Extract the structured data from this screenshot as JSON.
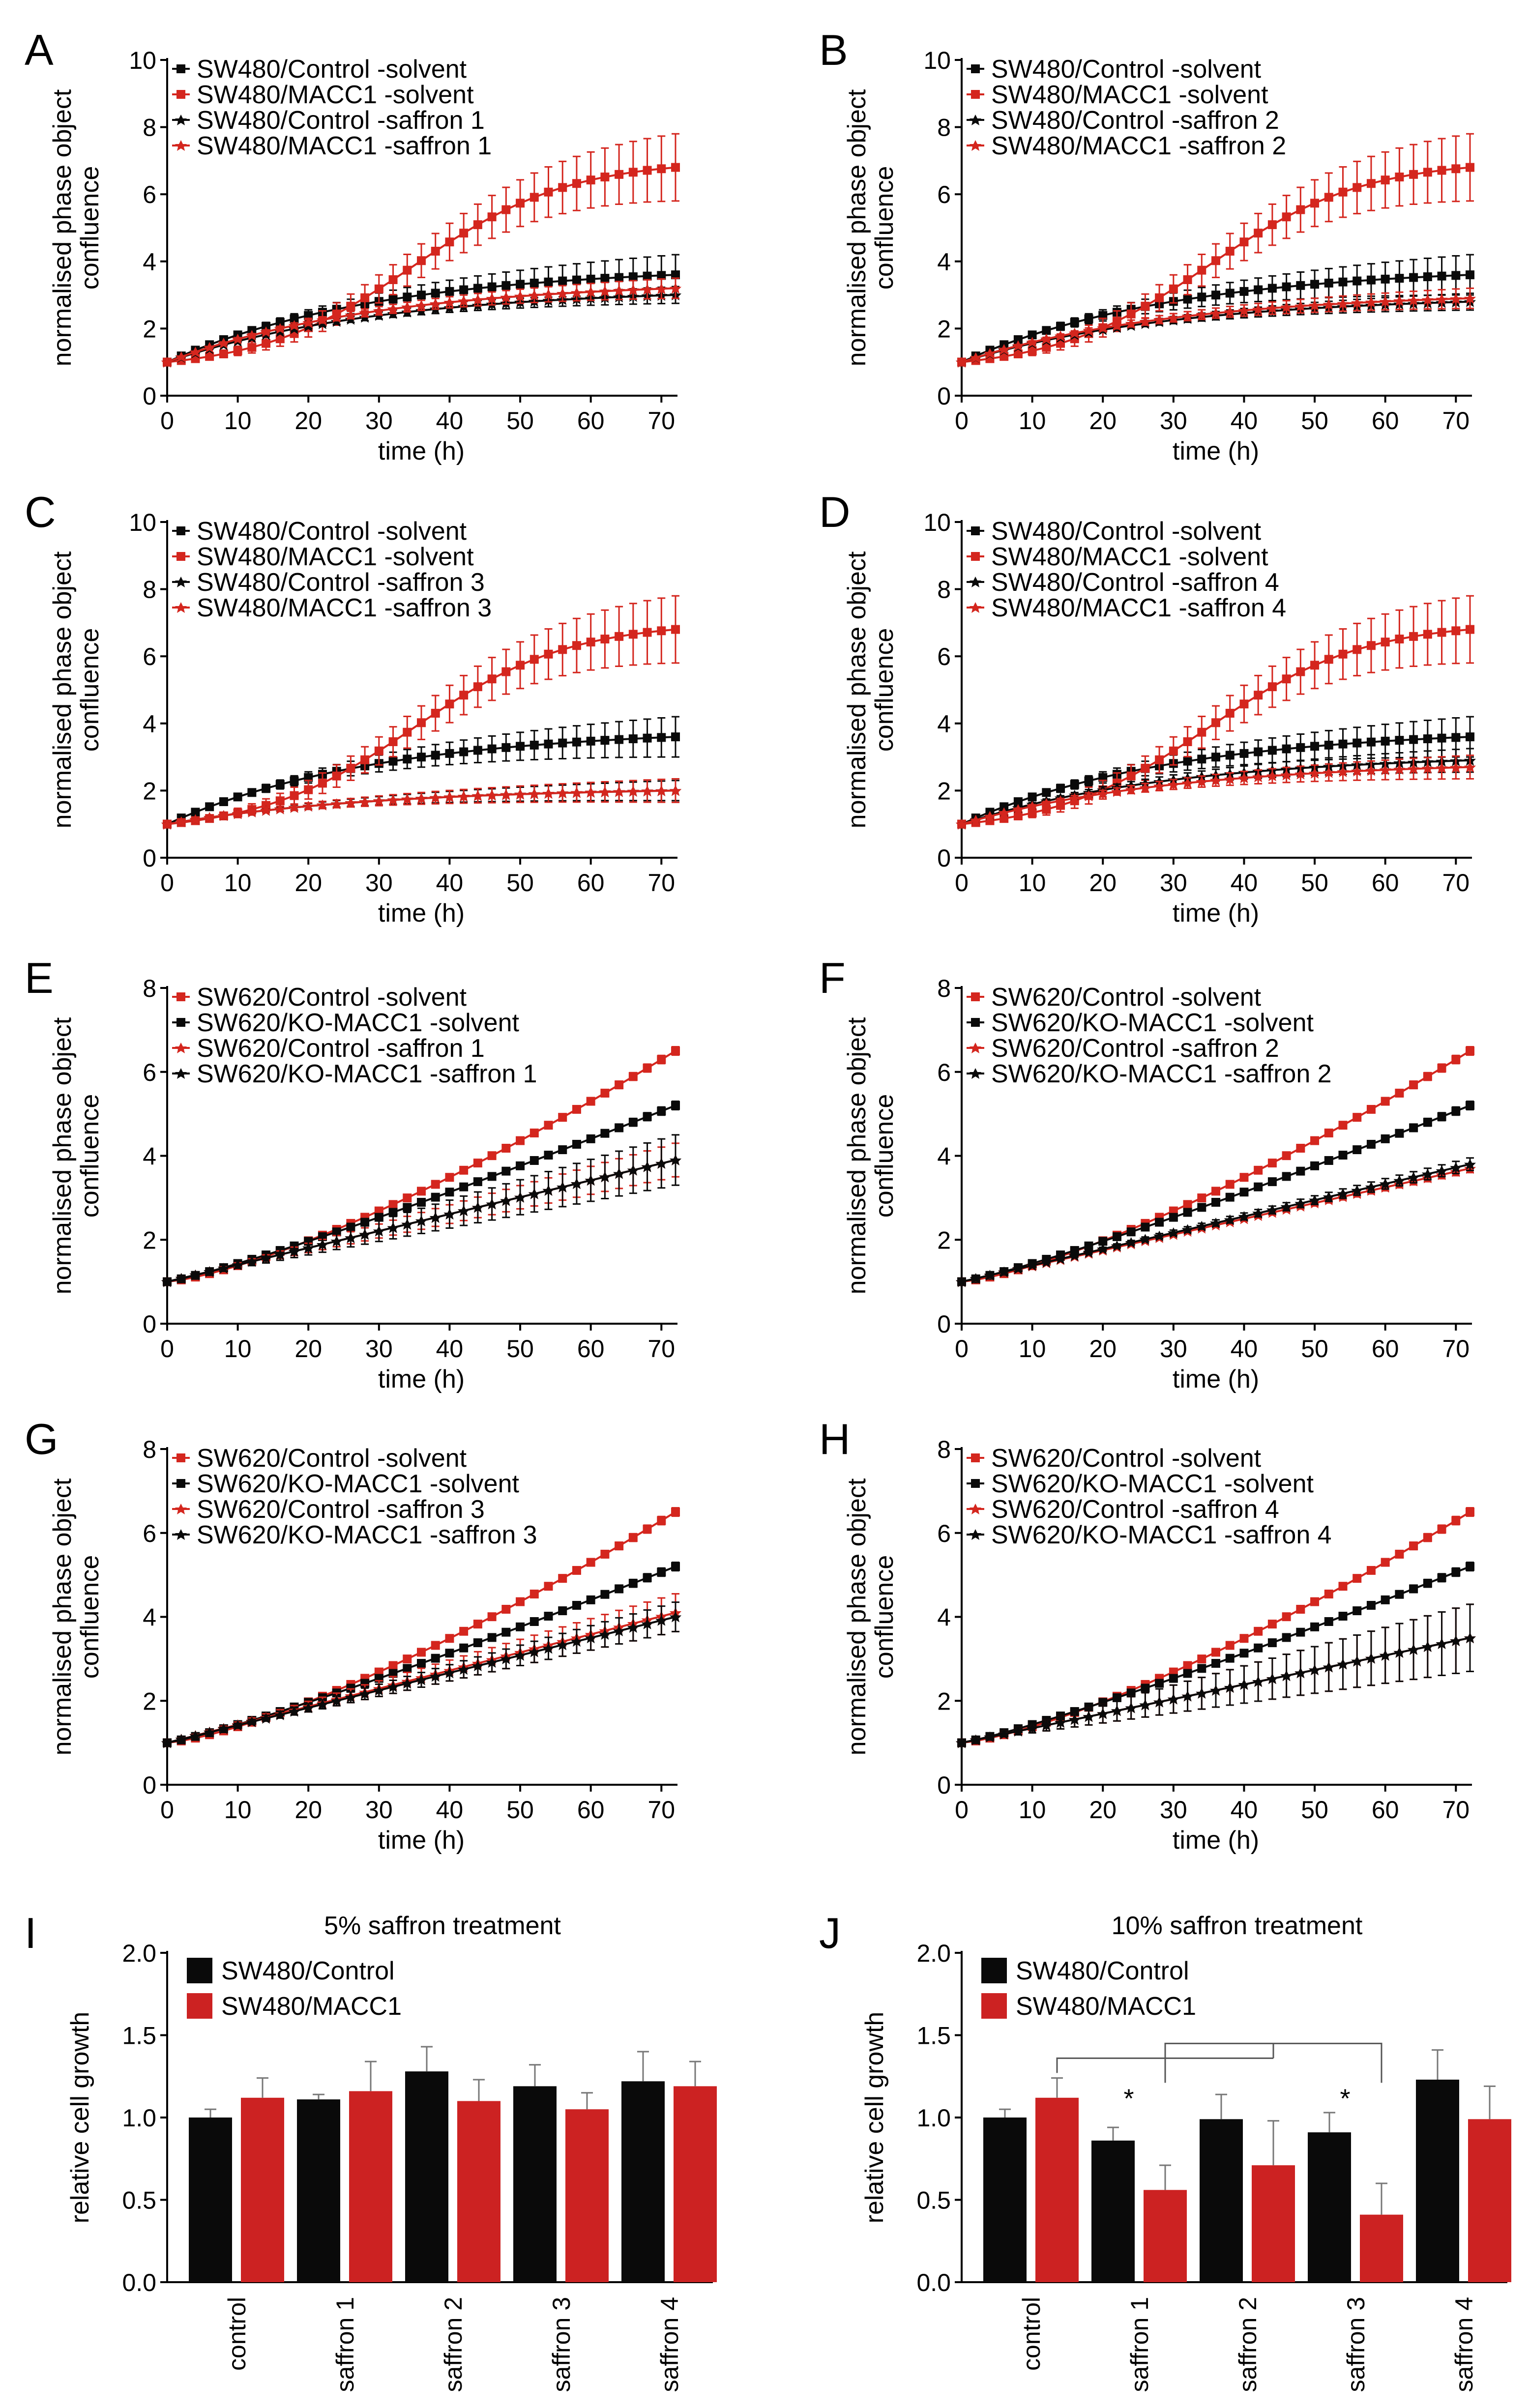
{
  "colors": {
    "black": "#0a0a0a",
    "red": "#d4261e",
    "red_bar": "#cc2222"
  },
  "chart_data": [
    {
      "panel": "A",
      "type": "line",
      "xlabel": "time (h)",
      "ylabel": [
        "normalised phase object",
        "confluence"
      ],
      "xlim": [
        0,
        72
      ],
      "ylim": [
        0,
        10
      ],
      "xticks": [
        0,
        10,
        20,
        30,
        40,
        50,
        60,
        70
      ],
      "yticks": [
        0,
        2,
        4,
        6,
        8,
        10
      ],
      "series": [
        {
          "name": "SW480/Control -solvent",
          "color": "black",
          "marker": "square",
          "final": 3.6,
          "err": 0.6,
          "shape": "sat"
        },
        {
          "name": "SW480/MACC1 -solvent",
          "color": "red",
          "marker": "square",
          "final": 6.8,
          "err": 1.0,
          "shape": "sig"
        },
        {
          "name": "SW480/Control -saffron 1",
          "color": "black",
          "marker": "star",
          "final": 3.0,
          "err": 0.25,
          "shape": "sat"
        },
        {
          "name": "SW480/MACC1 -saffron 1",
          "color": "red",
          "marker": "star",
          "final": 3.2,
          "err": 0.3,
          "shape": "sat"
        }
      ]
    },
    {
      "panel": "B",
      "type": "line",
      "xlabel": "time (h)",
      "ylabel": [
        "normalised phase object",
        "confluence"
      ],
      "xlim": [
        0,
        72
      ],
      "ylim": [
        0,
        10
      ],
      "xticks": [
        0,
        10,
        20,
        30,
        40,
        50,
        60,
        70
      ],
      "yticks": [
        0,
        2,
        4,
        6,
        8,
        10
      ],
      "series": [
        {
          "name": "SW480/Control -solvent",
          "color": "black",
          "marker": "square",
          "final": 3.6,
          "err": 0.6,
          "shape": "sat"
        },
        {
          "name": "SW480/MACC1 -solvent",
          "color": "red",
          "marker": "square",
          "final": 6.8,
          "err": 1.0,
          "shape": "sig"
        },
        {
          "name": "SW480/Control -saffron 2",
          "color": "black",
          "marker": "star",
          "final": 2.8,
          "err": 0.25,
          "shape": "sat"
        },
        {
          "name": "SW480/MACC1 -saffron 2",
          "color": "red",
          "marker": "star",
          "final": 2.9,
          "err": 0.3,
          "shape": "sat"
        }
      ]
    },
    {
      "panel": "C",
      "type": "line",
      "xlabel": "time (h)",
      "ylabel": [
        "normalised phase object",
        "confluence"
      ],
      "xlim": [
        0,
        72
      ],
      "ylim": [
        0,
        10
      ],
      "xticks": [
        0,
        10,
        20,
        30,
        40,
        50,
        60,
        70
      ],
      "yticks": [
        0,
        2,
        4,
        6,
        8,
        10
      ],
      "series": [
        {
          "name": "SW480/Control -solvent",
          "color": "black",
          "marker": "square",
          "final": 3.6,
          "err": 0.6,
          "shape": "sat"
        },
        {
          "name": "SW480/MACC1 -solvent",
          "color": "red",
          "marker": "square",
          "final": 6.8,
          "err": 1.0,
          "shape": "sig"
        },
        {
          "name": "SW480/Control -saffron 3",
          "color": "black",
          "marker": "star",
          "final": 2.0,
          "err": 0.3,
          "shape": "sat"
        },
        {
          "name": "SW480/MACC1 -saffron 3",
          "color": "red",
          "marker": "star",
          "final": 2.0,
          "err": 0.35,
          "shape": "sat"
        }
      ]
    },
    {
      "panel": "D",
      "type": "line",
      "xlabel": "time (h)",
      "ylabel": [
        "normalised phase object",
        "confluence"
      ],
      "xlim": [
        0,
        72
      ],
      "ylim": [
        0,
        10
      ],
      "xticks": [
        0,
        10,
        20,
        30,
        40,
        50,
        60,
        70
      ],
      "yticks": [
        0,
        2,
        4,
        6,
        8,
        10
      ],
      "series": [
        {
          "name": "SW480/Control -solvent",
          "color": "black",
          "marker": "square",
          "final": 3.6,
          "err": 0.6,
          "shape": "sat"
        },
        {
          "name": "SW480/MACC1 -solvent",
          "color": "red",
          "marker": "square",
          "final": 6.8,
          "err": 1.0,
          "shape": "sig"
        },
        {
          "name": "SW480/Control -saffron 4",
          "color": "black",
          "marker": "star",
          "final": 2.9,
          "err": 0.35,
          "shape": "sat"
        },
        {
          "name": "SW480/MACC1 -saffron 4",
          "color": "red",
          "marker": "star",
          "final": 2.7,
          "err": 0.35,
          "shape": "sat"
        }
      ]
    },
    {
      "panel": "E",
      "type": "line",
      "xlabel": "time (h)",
      "ylabel": [
        "normalised phase object",
        "confluence"
      ],
      "xlim": [
        0,
        72
      ],
      "ylim": [
        0,
        8
      ],
      "xticks": [
        0,
        10,
        20,
        30,
        40,
        50,
        60,
        70
      ],
      "yticks": [
        0,
        2,
        4,
        6,
        8
      ],
      "series": [
        {
          "name": "SW620/Control -solvent",
          "color": "red",
          "marker": "square",
          "final": 6.5,
          "err": 0.1,
          "shape": "conv"
        },
        {
          "name": "SW620/KO-MACC1 -solvent",
          "color": "black",
          "marker": "square",
          "final": 5.2,
          "err": 0.1,
          "shape": "kink"
        },
        {
          "name": "SW620/Control -saffron 1",
          "color": "red",
          "marker": "star",
          "final": 3.9,
          "err": 0.4,
          "shape": "lin"
        },
        {
          "name": "SW620/KO-MACC1 -saffron 1",
          "color": "black",
          "marker": "star",
          "final": 3.9,
          "err": 0.6,
          "shape": "lin"
        }
      ]
    },
    {
      "panel": "F",
      "type": "line",
      "xlabel": "time (h)",
      "ylabel": [
        "normalised phase object",
        "confluence"
      ],
      "xlim": [
        0,
        72
      ],
      "ylim": [
        0,
        8
      ],
      "xticks": [
        0,
        10,
        20,
        30,
        40,
        50,
        60,
        70
      ],
      "yticks": [
        0,
        2,
        4,
        6,
        8
      ],
      "series": [
        {
          "name": "SW620/Control -solvent",
          "color": "red",
          "marker": "square",
          "final": 6.5,
          "err": 0.1,
          "shape": "conv"
        },
        {
          "name": "SW620/KO-MACC1 -solvent",
          "color": "black",
          "marker": "square",
          "final": 5.2,
          "err": 0.1,
          "shape": "kink"
        },
        {
          "name": "SW620/Control -saffron 2",
          "color": "red",
          "marker": "star",
          "final": 3.7,
          "err": 0.1,
          "shape": "lin"
        },
        {
          "name": "SW620/KO-MACC1 -saffron 2",
          "color": "black",
          "marker": "star",
          "final": 3.8,
          "err": 0.15,
          "shape": "lin"
        }
      ]
    },
    {
      "panel": "G",
      "type": "line",
      "xlabel": "time (h)",
      "ylabel": [
        "normalised phase object",
        "confluence"
      ],
      "xlim": [
        0,
        72
      ],
      "ylim": [
        0,
        8
      ],
      "xticks": [
        0,
        10,
        20,
        30,
        40,
        50,
        60,
        70
      ],
      "yticks": [
        0,
        2,
        4,
        6,
        8
      ],
      "series": [
        {
          "name": "SW620/Control -solvent",
          "color": "red",
          "marker": "square",
          "final": 6.5,
          "err": 0.1,
          "shape": "conv"
        },
        {
          "name": "SW620/KO-MACC1 -solvent",
          "color": "black",
          "marker": "square",
          "final": 5.2,
          "err": 0.1,
          "shape": "kink"
        },
        {
          "name": "SW620/Control -saffron 3",
          "color": "red",
          "marker": "star",
          "final": 4.1,
          "err": 0.45,
          "shape": "lin"
        },
        {
          "name": "SW620/KO-MACC1 -saffron 3",
          "color": "black",
          "marker": "star",
          "final": 4.0,
          "err": 0.35,
          "shape": "lin"
        }
      ]
    },
    {
      "panel": "H",
      "type": "line",
      "xlabel": "time (h)",
      "ylabel": [
        "normalised phase object",
        "confluence"
      ],
      "xlim": [
        0,
        72
      ],
      "ylim": [
        0,
        8
      ],
      "xticks": [
        0,
        10,
        20,
        30,
        40,
        50,
        60,
        70
      ],
      "yticks": [
        0,
        2,
        4,
        6,
        8
      ],
      "series": [
        {
          "name": "SW620/Control -solvent",
          "color": "red",
          "marker": "square",
          "final": 6.5,
          "err": 0.1,
          "shape": "conv"
        },
        {
          "name": "SW620/KO-MACC1 -solvent",
          "color": "black",
          "marker": "square",
          "final": 5.2,
          "err": 0.1,
          "shape": "kink"
        },
        {
          "name": "SW620/Control -saffron 4",
          "color": "red",
          "marker": "star",
          "final": 3.5,
          "err": 0.8,
          "shape": "lin"
        },
        {
          "name": "SW620/KO-MACC1 -saffron 4",
          "color": "black",
          "marker": "star",
          "final": 3.5,
          "err": 0.8,
          "shape": "lin"
        }
      ]
    },
    {
      "panel": "I",
      "type": "bar",
      "title": "5% saffron treatment",
      "ylabel": "relative cell growth",
      "ylim": [
        0,
        2.0
      ],
      "yticks": [
        "0.0",
        "0.5",
        "1.0",
        "1.5",
        "2.0"
      ],
      "categories": [
        "control",
        "saffron 1",
        "saffron 2",
        "saffron 3",
        "saffron 4"
      ],
      "series": [
        {
          "name": "SW480/Control",
          "color": "black",
          "values": [
            1.0,
            1.11,
            1.28,
            1.19,
            1.22
          ],
          "errors": [
            0.05,
            0.03,
            0.15,
            0.13,
            0.18
          ]
        },
        {
          "name": "SW480/MACC1",
          "color": "red",
          "values": [
            1.12,
            1.16,
            1.1,
            1.05,
            1.19
          ],
          "errors": [
            0.12,
            0.18,
            0.13,
            0.1,
            0.15
          ]
        }
      ],
      "significance": []
    },
    {
      "panel": "J",
      "type": "bar",
      "title": "10% saffron treatment",
      "ylabel": "relative cell growth",
      "ylim": [
        0,
        2.0
      ],
      "yticks": [
        "0.0",
        "0.5",
        "1.0",
        "1.5",
        "2.0"
      ],
      "categories": [
        "control",
        "saffron 1",
        "saffron 2",
        "saffron 3",
        "saffron 4"
      ],
      "series": [
        {
          "name": "SW480/Control",
          "color": "black",
          "values": [
            1.0,
            0.86,
            0.99,
            0.91,
            1.23
          ],
          "errors": [
            0.05,
            0.08,
            0.15,
            0.12,
            0.18
          ]
        },
        {
          "name": "SW480/MACC1",
          "color": "red",
          "values": [
            1.12,
            0.56,
            0.71,
            0.41,
            0.99
          ],
          "errors": [
            0.12,
            0.15,
            0.27,
            0.19,
            0.2
          ]
        }
      ],
      "significance": [
        {
          "from": 0,
          "to": [
            1,
            3
          ],
          "label": "*",
          "bracket_y": 1.36
        }
      ]
    }
  ]
}
